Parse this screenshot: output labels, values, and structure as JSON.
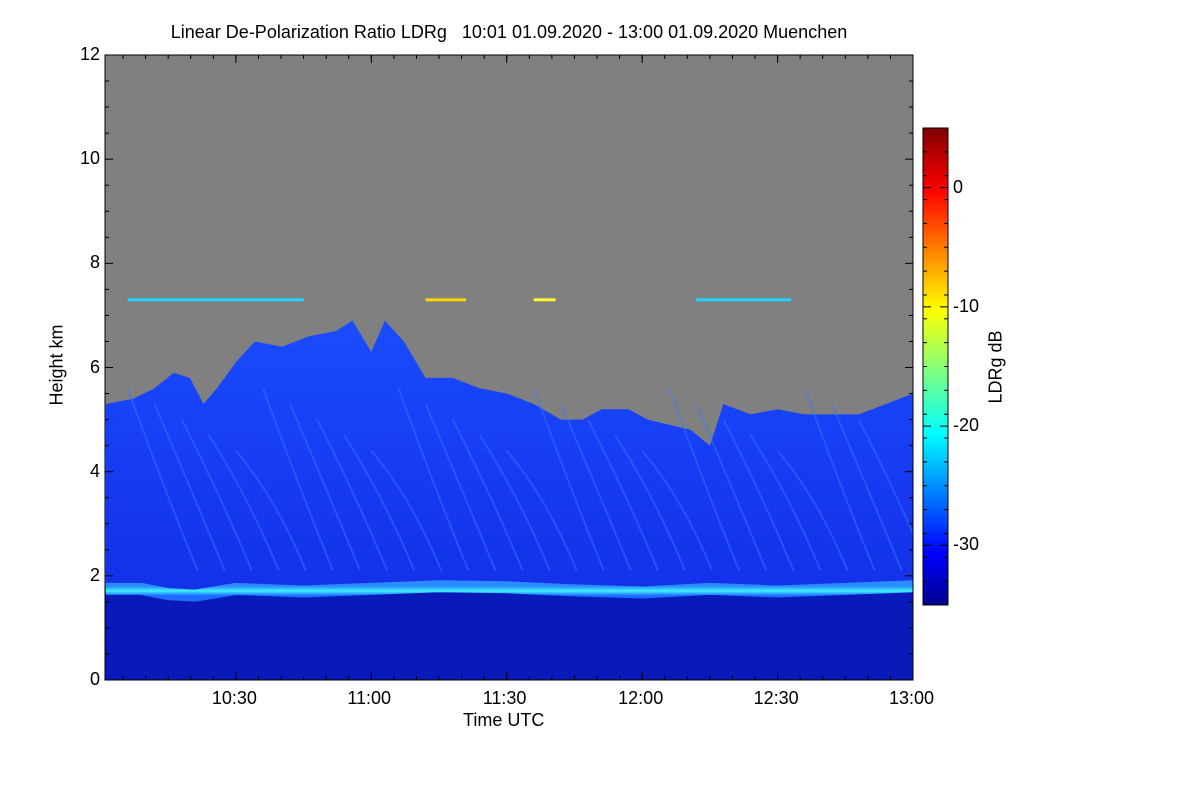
{
  "chart_data": {
    "type": "heatmap",
    "title": "Linear De-Polarization Ratio LDRg   10:01 01.09.2020 - 13:00 01.09.2020 Muenchen",
    "xlabel": "Time UTC",
    "ylabel": "Height km",
    "xlim_hours": [
      10.0167,
      13.0
    ],
    "ylim_km": [
      0,
      12
    ],
    "x_ticks": [
      {
        "label": "10:30",
        "value": 10.5
      },
      {
        "label": "11:00",
        "value": 11.0
      },
      {
        "label": "11:30",
        "value": 11.5
      },
      {
        "label": "12:00",
        "value": 12.0
      },
      {
        "label": "12:30",
        "value": 12.5
      },
      {
        "label": "13:00",
        "value": 13.0
      }
    ],
    "y_ticks": [
      {
        "label": "0",
        "value": 0
      },
      {
        "label": "2",
        "value": 2
      },
      {
        "label": "4",
        "value": 4
      },
      {
        "label": "6",
        "value": 6
      },
      {
        "label": "8",
        "value": 8
      },
      {
        "label": "10",
        "value": 10
      },
      {
        "label": "12",
        "value": 12
      }
    ],
    "colorbar": {
      "label": "LDRg dB",
      "range": [
        -35,
        5
      ],
      "ticks": [
        {
          "label": "0",
          "value": 0
        },
        {
          "label": "-10",
          "value": -10
        },
        {
          "label": "-20",
          "value": -20
        },
        {
          "label": "-30",
          "value": -30
        }
      ],
      "colormap": "jet"
    },
    "no_data_color": "#808080",
    "features": {
      "cloud_top_profile": [
        {
          "t": 10.02,
          "h": 5.3
        },
        {
          "t": 10.12,
          "h": 5.4
        },
        {
          "t": 10.2,
          "h": 5.6
        },
        {
          "t": 10.27,
          "h": 5.9
        },
        {
          "t": 10.33,
          "h": 5.8
        },
        {
          "t": 10.38,
          "h": 5.3
        },
        {
          "t": 10.43,
          "h": 5.6
        },
        {
          "t": 10.5,
          "h": 6.1
        },
        {
          "t": 10.57,
          "h": 6.5
        },
        {
          "t": 10.67,
          "h": 6.4
        },
        {
          "t": 10.77,
          "h": 6.6
        },
        {
          "t": 10.87,
          "h": 6.7
        },
        {
          "t": 10.93,
          "h": 6.9
        },
        {
          "t": 11.0,
          "h": 6.3
        },
        {
          "t": 11.05,
          "h": 6.9
        },
        {
          "t": 11.12,
          "h": 6.5
        },
        {
          "t": 11.2,
          "h": 5.8
        },
        {
          "t": 11.3,
          "h": 5.8
        },
        {
          "t": 11.4,
          "h": 5.6
        },
        {
          "t": 11.5,
          "h": 5.5
        },
        {
          "t": 11.6,
          "h": 5.3
        },
        {
          "t": 11.7,
          "h": 5.0
        },
        {
          "t": 11.78,
          "h": 5.0
        },
        {
          "t": 11.85,
          "h": 5.2
        },
        {
          "t": 11.95,
          "h": 5.2
        },
        {
          "t": 12.02,
          "h": 5.0
        },
        {
          "t": 12.1,
          "h": 4.9
        },
        {
          "t": 12.18,
          "h": 4.8
        },
        {
          "t": 12.25,
          "h": 4.5
        },
        {
          "t": 12.3,
          "h": 5.3
        },
        {
          "t": 12.4,
          "h": 5.1
        },
        {
          "t": 12.5,
          "h": 5.2
        },
        {
          "t": 12.6,
          "h": 5.1
        },
        {
          "t": 12.7,
          "h": 5.1
        },
        {
          "t": 12.8,
          "h": 5.1
        },
        {
          "t": 12.9,
          "h": 5.3
        },
        {
          "t": 13.0,
          "h": 5.5
        }
      ],
      "melting_layer_profile": [
        {
          "t": 10.02,
          "h": 1.75
        },
        {
          "t": 10.15,
          "h": 1.75
        },
        {
          "t": 10.25,
          "h": 1.65
        },
        {
          "t": 10.35,
          "h": 1.62
        },
        {
          "t": 10.5,
          "h": 1.75
        },
        {
          "t": 10.75,
          "h": 1.7
        },
        {
          "t": 11.0,
          "h": 1.75
        },
        {
          "t": 11.25,
          "h": 1.8
        },
        {
          "t": 11.5,
          "h": 1.78
        },
        {
          "t": 11.75,
          "h": 1.72
        },
        {
          "t": 12.0,
          "h": 1.68
        },
        {
          "t": 12.25,
          "h": 1.75
        },
        {
          "t": 12.5,
          "h": 1.7
        },
        {
          "t": 12.75,
          "h": 1.75
        },
        {
          "t": 13.0,
          "h": 1.8
        }
      ],
      "cloud_ldr_db": -31,
      "melting_layer_ldr_db": -20,
      "rain_ldr_db": -34,
      "thin_layer_height_km": 7.3
    }
  }
}
